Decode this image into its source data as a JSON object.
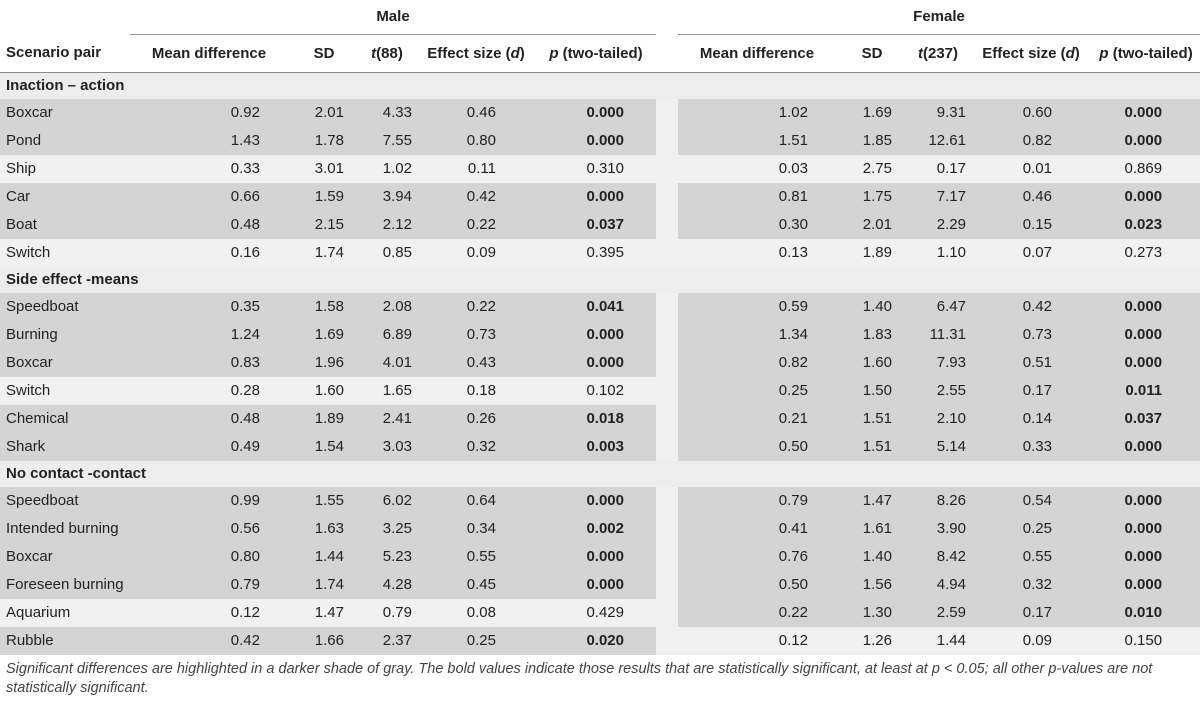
{
  "groups": {
    "male": "Male",
    "female": "Female"
  },
  "columns": {
    "scenario": "Scenario pair",
    "mean_diff": "Mean difference",
    "sd": "SD",
    "t_male_letter": "t",
    "t_male_df": "(88)",
    "t_female_letter": "t",
    "t_female_df": "(237)",
    "effect_prefix": "Effect size (",
    "effect_letter": "d",
    "effect_suffix": ")",
    "p_letter": "p",
    "p_suffix": " (two-tailed)"
  },
  "sections": [
    {
      "title": "Inaction – action",
      "rows": [
        {
          "name": "Boxcar",
          "shade": [
            "dark",
            "dark"
          ],
          "male": {
            "md": "0.92",
            "sd": "2.01",
            "t": "4.33",
            "d": "0.46",
            "p": "0.000",
            "sig": true
          },
          "female": {
            "md": "1.02",
            "sd": "1.69",
            "t": "9.31",
            "d": "0.60",
            "p": "0.000",
            "sig": true
          }
        },
        {
          "name": "Pond",
          "shade": [
            "dark",
            "dark"
          ],
          "male": {
            "md": "1.43",
            "sd": "1.78",
            "t": "7.55",
            "d": "0.80",
            "p": "0.000",
            "sig": true
          },
          "female": {
            "md": "1.51",
            "sd": "1.85",
            "t": "12.61",
            "d": "0.82",
            "p": "0.000",
            "sig": true
          }
        },
        {
          "name": "Ship",
          "shade": [
            "light",
            "light"
          ],
          "male": {
            "md": "0.33",
            "sd": "3.01",
            "t": "1.02",
            "d": "0.11",
            "p": "0.310",
            "sig": false
          },
          "female": {
            "md": "0.03",
            "sd": "2.75",
            "t": "0.17",
            "d": "0.01",
            "p": "0.869",
            "sig": false
          }
        },
        {
          "name": "Car",
          "shade": [
            "dark",
            "dark"
          ],
          "male": {
            "md": "0.66",
            "sd": "1.59",
            "t": "3.94",
            "d": "0.42",
            "p": "0.000",
            "sig": true
          },
          "female": {
            "md": "0.81",
            "sd": "1.75",
            "t": "7.17",
            "d": "0.46",
            "p": "0.000",
            "sig": true
          }
        },
        {
          "name": "Boat",
          "shade": [
            "dark",
            "dark"
          ],
          "male": {
            "md": "0.48",
            "sd": "2.15",
            "t": "2.12",
            "d": "0.22",
            "p": "0.037",
            "sig": true
          },
          "female": {
            "md": "0.30",
            "sd": "2.01",
            "t": "2.29",
            "d": "0.15",
            "p": "0.023",
            "sig": true
          }
        },
        {
          "name": "Switch",
          "shade": [
            "light",
            "light"
          ],
          "male": {
            "md": "0.16",
            "sd": "1.74",
            "t": "0.85",
            "d": "0.09",
            "p": "0.395",
            "sig": false
          },
          "female": {
            "md": "0.13",
            "sd": "1.89",
            "t": "1.10",
            "d": "0.07",
            "p": "0.273",
            "sig": false
          }
        }
      ]
    },
    {
      "title": "Side effect -means",
      "rows": [
        {
          "name": "Speedboat",
          "shade": [
            "dark",
            "dark"
          ],
          "male": {
            "md": "0.35",
            "sd": "1.58",
            "t": "2.08",
            "d": "0.22",
            "p": "0.041",
            "sig": true
          },
          "female": {
            "md": "0.59",
            "sd": "1.40",
            "t": "6.47",
            "d": "0.42",
            "p": "0.000",
            "sig": true
          }
        },
        {
          "name": "Burning",
          "shade": [
            "dark",
            "dark"
          ],
          "male": {
            "md": "1.24",
            "sd": "1.69",
            "t": "6.89",
            "d": "0.73",
            "p": "0.000",
            "sig": true
          },
          "female": {
            "md": "1.34",
            "sd": "1.83",
            "t": "11.31",
            "d": "0.73",
            "p": "0.000",
            "sig": true
          }
        },
        {
          "name": "Boxcar",
          "shade": [
            "dark",
            "dark"
          ],
          "male": {
            "md": "0.83",
            "sd": "1.96",
            "t": "4.01",
            "d": "0.43",
            "p": "0.000",
            "sig": true
          },
          "female": {
            "md": "0.82",
            "sd": "1.60",
            "t": "7.93",
            "d": "0.51",
            "p": "0.000",
            "sig": true
          }
        },
        {
          "name": "Switch",
          "shade": [
            "light",
            "dark"
          ],
          "male": {
            "md": "0.28",
            "sd": "1.60",
            "t": "1.65",
            "d": "0.18",
            "p": "0.102",
            "sig": false
          },
          "female": {
            "md": "0.25",
            "sd": "1.50",
            "t": "2.55",
            "d": "0.17",
            "p": "0.011",
            "sig": true
          }
        },
        {
          "name": "Chemical",
          "shade": [
            "dark",
            "dark"
          ],
          "male": {
            "md": "0.48",
            "sd": "1.89",
            "t": "2.41",
            "d": "0.26",
            "p": "0.018",
            "sig": true
          },
          "female": {
            "md": "0.21",
            "sd": "1.51",
            "t": "2.10",
            "d": "0.14",
            "p": "0.037",
            "sig": true
          }
        },
        {
          "name": "Shark",
          "shade": [
            "dark",
            "dark"
          ],
          "male": {
            "md": "0.49",
            "sd": "1.54",
            "t": "3.03",
            "d": "0.32",
            "p": "0.003",
            "sig": true
          },
          "female": {
            "md": "0.50",
            "sd": "1.51",
            "t": "5.14",
            "d": "0.33",
            "p": "0.000",
            "sig": true
          }
        }
      ]
    },
    {
      "title": "No contact -contact",
      "rows": [
        {
          "name": "Speedboat",
          "shade": [
            "dark",
            "dark"
          ],
          "male": {
            "md": "0.99",
            "sd": "1.55",
            "t": "6.02",
            "d": "0.64",
            "p": "0.000",
            "sig": true
          },
          "female": {
            "md": "0.79",
            "sd": "1.47",
            "t": "8.26",
            "d": "0.54",
            "p": "0.000",
            "sig": true
          }
        },
        {
          "name": "Intended burning",
          "shade": [
            "dark",
            "dark"
          ],
          "male": {
            "md": "0.56",
            "sd": "1.63",
            "t": "3.25",
            "d": "0.34",
            "p": "0.002",
            "sig": true
          },
          "female": {
            "md": "0.41",
            "sd": "1.61",
            "t": "3.90",
            "d": "0.25",
            "p": "0.000",
            "sig": true
          }
        },
        {
          "name": "Boxcar",
          "shade": [
            "dark",
            "dark"
          ],
          "male": {
            "md": "0.80",
            "sd": "1.44",
            "t": "5.23",
            "d": "0.55",
            "p": "0.000",
            "sig": true
          },
          "female": {
            "md": "0.76",
            "sd": "1.40",
            "t": "8.42",
            "d": "0.55",
            "p": "0.000",
            "sig": true
          }
        },
        {
          "name": "Foreseen burning",
          "shade": [
            "dark",
            "dark"
          ],
          "male": {
            "md": "0.79",
            "sd": "1.74",
            "t": "4.28",
            "d": "0.45",
            "p": "0.000",
            "sig": true
          },
          "female": {
            "md": "0.50",
            "sd": "1.56",
            "t": "4.94",
            "d": "0.32",
            "p": "0.000",
            "sig": true
          }
        },
        {
          "name": "Aquarium",
          "shade": [
            "light",
            "dark"
          ],
          "male": {
            "md": "0.12",
            "sd": "1.47",
            "t": "0.79",
            "d": "0.08",
            "p": "0.429",
            "sig": false
          },
          "female": {
            "md": "0.22",
            "sd": "1.30",
            "t": "2.59",
            "d": "0.17",
            "p": "0.010",
            "sig": true
          }
        },
        {
          "name": "Rubble",
          "shade": [
            "dark",
            "light"
          ],
          "male": {
            "md": "0.42",
            "sd": "1.66",
            "t": "2.37",
            "d": "0.25",
            "p": "0.020",
            "sig": true
          },
          "female": {
            "md": "0.12",
            "sd": "1.26",
            "t": "1.44",
            "d": "0.09",
            "p": "0.150",
            "sig": false
          }
        }
      ]
    }
  ],
  "footnote": {
    "part1": "Significant differences are highlighted in a darker shade of gray. The bold values indicate those results that are statistically significant, at least at ",
    "p_letter": "p",
    "part2": " < 0.05; all other p-values are not statistically significant."
  }
}
